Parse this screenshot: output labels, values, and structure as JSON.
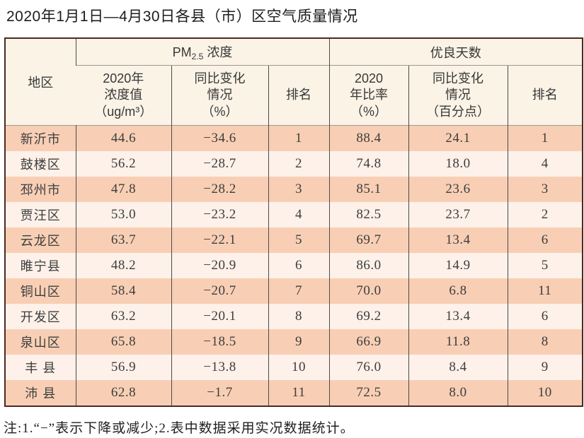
{
  "page": {
    "title": "2020年1月1日—4月30日各县（市）区空气质量情况",
    "note": "注:1.“−”表示下降或减少;2.表中数据采用实况数据统计。"
  },
  "table": {
    "header": {
      "region": "地区",
      "pm_group": {
        "prefix": "PM",
        "sub": "2.5",
        "suffix": "浓度"
      },
      "good_group": "优良天数",
      "sub_headers": {
        "pm_value": "2020年\n浓度值\n（ug/m³）",
        "pm_change": "同比变化\n情况\n（%）",
        "pm_rank": "排名",
        "good_rate": "2020\n年比率\n（%）",
        "good_change": "同比变化\n情况\n（百分点）",
        "good_rank": "排名"
      }
    },
    "rows": [
      {
        "region": "新沂市",
        "pm_value": "44.6",
        "pm_change": "−34.6",
        "pm_rank": "1",
        "good_rate": "88.4",
        "good_change": "24.1",
        "good_rank": "1"
      },
      {
        "region": "鼓楼区",
        "pm_value": "56.2",
        "pm_change": "−28.7",
        "pm_rank": "2",
        "good_rate": "74.8",
        "good_change": "18.0",
        "good_rank": "4"
      },
      {
        "region": "邳州市",
        "pm_value": "47.8",
        "pm_change": "−28.2",
        "pm_rank": "3",
        "good_rate": "85.1",
        "good_change": "23.6",
        "good_rank": "3"
      },
      {
        "region": "贾汪区",
        "pm_value": "53.0",
        "pm_change": "−23.2",
        "pm_rank": "4",
        "good_rate": "82.5",
        "good_change": "23.7",
        "good_rank": "2"
      },
      {
        "region": "云龙区",
        "pm_value": "63.7",
        "pm_change": "−22.1",
        "pm_rank": "5",
        "good_rate": "69.7",
        "good_change": "13.4",
        "good_rank": "6"
      },
      {
        "region": "睢宁县",
        "pm_value": "48.2",
        "pm_change": "−20.9",
        "pm_rank": "6",
        "good_rate": "86.0",
        "good_change": "14.9",
        "good_rank": "5"
      },
      {
        "region": "铜山区",
        "pm_value": "58.4",
        "pm_change": "−20.7",
        "pm_rank": "7",
        "good_rate": "70.0",
        "good_change": "6.8",
        "good_rank": "11"
      },
      {
        "region": "开发区",
        "pm_value": "63.2",
        "pm_change": "−20.1",
        "pm_rank": "8",
        "good_rate": "69.2",
        "good_change": "13.4",
        "good_rank": "6"
      },
      {
        "region": "泉山区",
        "pm_value": "65.8",
        "pm_change": "−18.5",
        "pm_rank": "9",
        "good_rate": "66.9",
        "good_change": "11.8",
        "good_rank": "8"
      },
      {
        "region": "丰 县",
        "pm_value": "56.9",
        "pm_change": "−13.8",
        "pm_rank": "10",
        "good_rate": "76.0",
        "good_change": "8.4",
        "good_rank": "9"
      },
      {
        "region": "沛 县",
        "pm_value": "62.8",
        "pm_change": "−1.7",
        "pm_rank": "11",
        "good_rate": "72.5",
        "good_change": "8.0",
        "good_rank": "10"
      }
    ]
  },
  "colors": {
    "row_odd": "#f8cfb5",
    "row_even": "#fdf1e9",
    "header_bg": "#faf3e6",
    "outer_border": "#4b2a21",
    "inner_border": "#4e4a46",
    "header_divider": "#9c9894"
  }
}
